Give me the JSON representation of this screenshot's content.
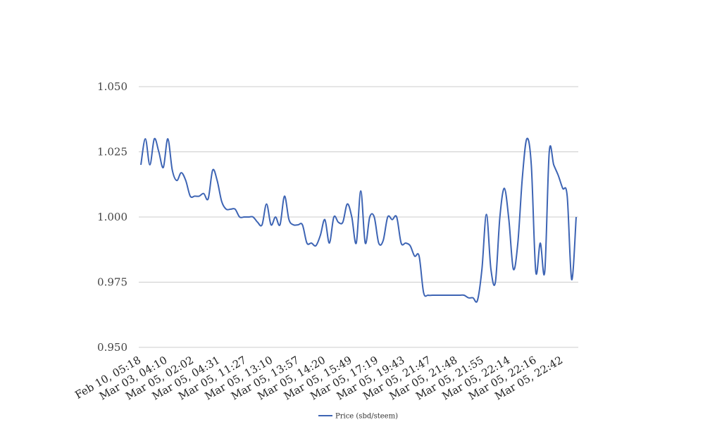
{
  "chart_data": {
    "type": "line",
    "title": "",
    "xlabel": "",
    "ylabel": "",
    "ylim": [
      0.95,
      1.05
    ],
    "y_ticks": [
      "0.950",
      "0.975",
      "1.000",
      "1.025",
      "1.050"
    ],
    "grid": true,
    "legend_position": "bottom",
    "x_tick_labels": [
      "Feb 10, 05:18",
      "Mar 03, 04:10",
      "Mar 05, 02:02",
      "Mar 05, 04:31",
      "Mar 05, 11:27",
      "Mar 05, 13:10",
      "Mar 05, 13:57",
      "Mar 05, 14:20",
      "Mar 05, 15:49",
      "Mar 05, 17:19",
      "Mar 05, 19:43",
      "Mar 05, 21:47",
      "Mar 05, 21:48",
      "Mar 05, 21:55",
      "Mar 05, 22:14",
      "Mar 05, 22:16",
      "Mar 05, 22:42"
    ],
    "series": [
      {
        "name": "Price (sbd/steem)",
        "color": "#3d64b4",
        "values": [
          1.02,
          1.03,
          1.02,
          1.03,
          1.025,
          1.019,
          1.03,
          1.018,
          1.014,
          1.017,
          1.014,
          1.008,
          1.008,
          1.008,
          1.009,
          1.007,
          1.018,
          1.014,
          1.006,
          1.003,
          1.003,
          1.003,
          1.0,
          1.0,
          1.0,
          1.0,
          0.998,
          0.997,
          1.005,
          0.997,
          1.0,
          0.997,
          1.008,
          0.999,
          0.997,
          0.997,
          0.997,
          0.99,
          0.99,
          0.989,
          0.993,
          0.999,
          0.99,
          1.0,
          0.998,
          0.998,
          1.005,
          1.0,
          0.99,
          1.01,
          0.99,
          1.0,
          1.0,
          0.99,
          0.991,
          1.0,
          0.999,
          1.0,
          0.99,
          0.99,
          0.989,
          0.985,
          0.985,
          0.971,
          0.97,
          0.97,
          0.97,
          0.97,
          0.97,
          0.97,
          0.97,
          0.97,
          0.97,
          0.969,
          0.969,
          0.968,
          0.98,
          1.001,
          0.98,
          0.975,
          1.0,
          1.011,
          0.999,
          0.98,
          0.99,
          1.015,
          1.03,
          1.02,
          0.979,
          0.99,
          0.979,
          1.025,
          1.02,
          1.016,
          1.011,
          1.008,
          0.976,
          1.0
        ]
      }
    ]
  }
}
